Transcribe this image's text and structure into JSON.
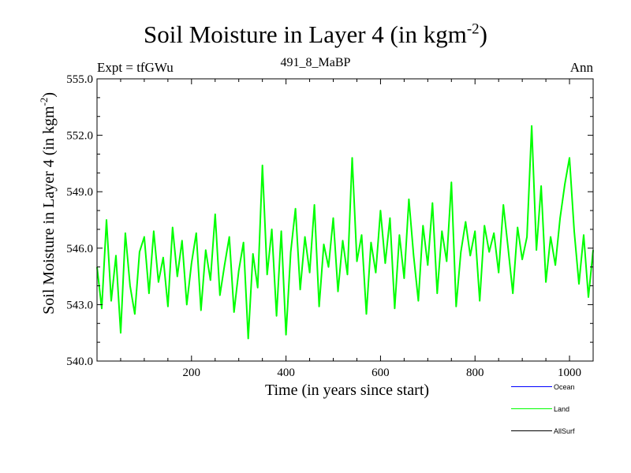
{
  "title": {
    "main": "Soil Moisture in Layer 4 (in kgm",
    "sup": "-2",
    "close": ")"
  },
  "subtitle": {
    "left": "Expt = tfGWu",
    "center": "491_8_MaBP",
    "right": "Ann"
  },
  "axes": {
    "ylabel": {
      "main": "Soil Moisture in Layer 4 (in kgm",
      "sup": "-2",
      "close": ")"
    },
    "xlabel": "Time (in years since start)"
  },
  "legend": [
    {
      "label": "Ocean",
      "color": "#0000ff"
    },
    {
      "label": "Land",
      "color": "#00ff00"
    },
    {
      "label": "AllSurf",
      "color": "#000000"
    }
  ],
  "chart_data": {
    "type": "line",
    "title": "Soil Moisture in Layer 4 (in kgm-2)",
    "xlabel": "Time (in years since start)",
    "ylabel": "Soil Moisture in Layer 4 (in kgm-2)",
    "xlim": [
      0,
      1050
    ],
    "ylim": [
      540.0,
      555.0
    ],
    "xticks": [
      200,
      400,
      600,
      800,
      1000
    ],
    "yticks": [
      540.0,
      543.0,
      546.0,
      549.0,
      552.0,
      555.0
    ],
    "ytick_labels": [
      "540.0",
      "543.0",
      "546.0",
      "549.0",
      "552.0",
      "555.0"
    ],
    "grid": false,
    "legend_position": "bottom-right, below plot",
    "series": [
      {
        "name": "Land",
        "color": "#00ff00",
        "x": [
          0,
          10,
          20,
          30,
          40,
          50,
          60,
          70,
          80,
          90,
          100,
          110,
          120,
          130,
          140,
          150,
          160,
          170,
          180,
          190,
          200,
          210,
          220,
          230,
          240,
          250,
          260,
          270,
          280,
          290,
          300,
          310,
          320,
          330,
          340,
          350,
          360,
          370,
          380,
          390,
          400,
          410,
          420,
          430,
          440,
          450,
          460,
          470,
          480,
          490,
          500,
          510,
          520,
          530,
          540,
          550,
          560,
          570,
          580,
          590,
          600,
          610,
          620,
          630,
          640,
          650,
          660,
          670,
          680,
          690,
          700,
          710,
          720,
          730,
          740,
          750,
          760,
          770,
          780,
          790,
          800,
          810,
          820,
          830,
          840,
          850,
          860,
          870,
          880,
          890,
          900,
          910,
          920,
          930,
          940,
          950,
          960,
          970,
          980,
          990,
          1000,
          1010,
          1020,
          1030,
          1040,
          1050
        ],
        "y": [
          545.0,
          542.8,
          547.5,
          543.2,
          545.6,
          541.5,
          546.8,
          544.0,
          542.5,
          545.8,
          546.6,
          543.6,
          546.9,
          544.2,
          545.5,
          542.9,
          547.1,
          544.5,
          546.4,
          543.0,
          545.2,
          546.8,
          542.7,
          545.9,
          544.3,
          547.8,
          543.5,
          545.1,
          546.6,
          542.6,
          544.8,
          546.3,
          541.2,
          545.7,
          543.9,
          550.4,
          544.6,
          547.0,
          542.4,
          546.9,
          541.4,
          545.8,
          548.1,
          543.8,
          546.6,
          544.7,
          548.3,
          542.9,
          546.2,
          545.0,
          547.6,
          543.7,
          546.4,
          544.6,
          550.8,
          545.3,
          546.7,
          542.5,
          546.3,
          544.7,
          548.0,
          545.2,
          547.6,
          542.8,
          546.7,
          544.4,
          548.6,
          545.6,
          543.2,
          547.2,
          545.1,
          548.4,
          543.6,
          546.9,
          545.3,
          549.5,
          542.9,
          545.8,
          547.4,
          545.6,
          546.9,
          543.2,
          547.2,
          545.8,
          546.8,
          544.7,
          548.3,
          546.0,
          543.6,
          547.1,
          545.4,
          546.6,
          552.5,
          545.9,
          549.3,
          544.2,
          546.6,
          545.1,
          547.6,
          549.4,
          550.8,
          546.9,
          544.1,
          546.7,
          543.4,
          545.9
        ]
      },
      {
        "name": "Ocean",
        "color": "#0000ff",
        "values": []
      },
      {
        "name": "AllSurf",
        "color": "#000000",
        "values": []
      }
    ]
  }
}
